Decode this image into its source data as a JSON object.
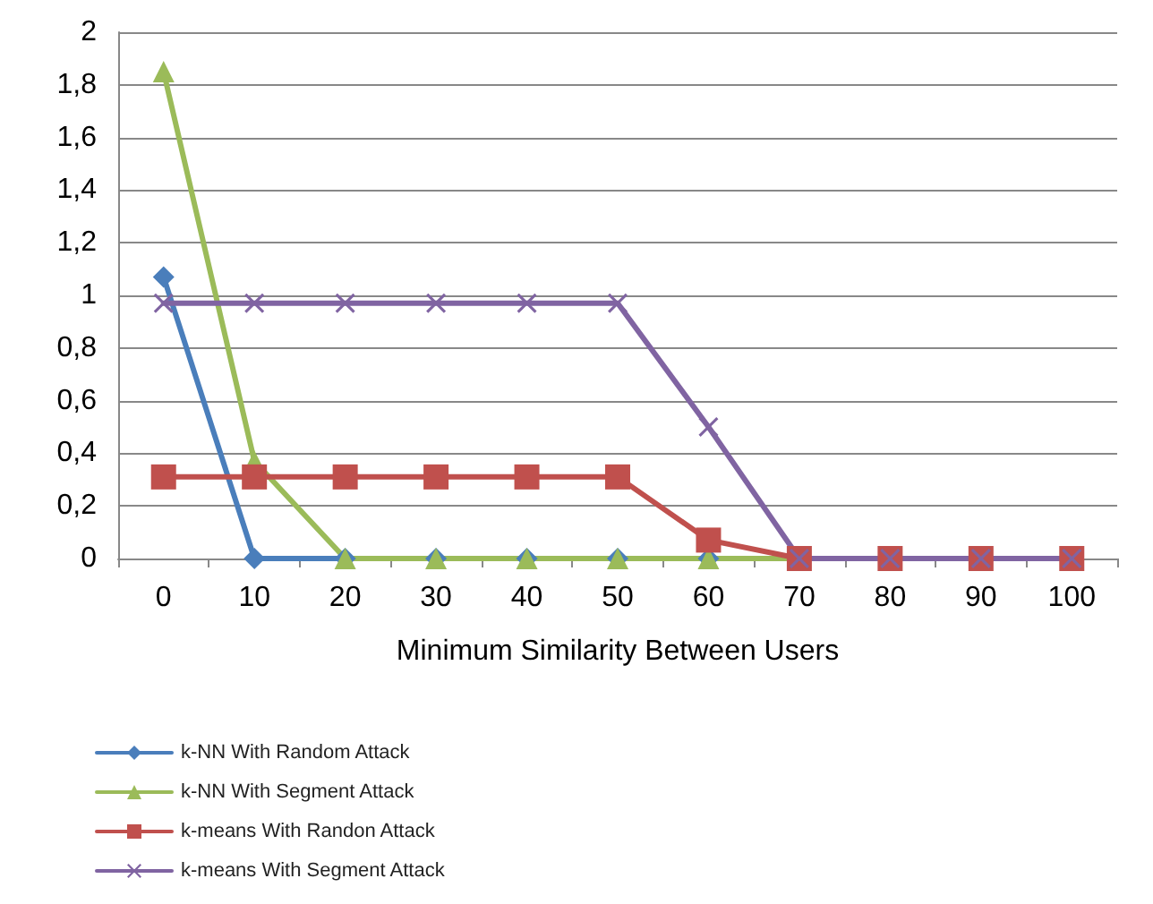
{
  "chart_data": {
    "type": "line",
    "xlabel": "Minimum Similarity Between Users",
    "categories": [
      "0",
      "10",
      "20",
      "30",
      "40",
      "50",
      "60",
      "70",
      "80",
      "90",
      "100"
    ],
    "series": [
      {
        "name": "k-NN With Random Attack",
        "color": "#4a7ebb",
        "marker": "diamond",
        "values": [
          1.07,
          0,
          0,
          0,
          0,
          0,
          0,
          0,
          null,
          null,
          null
        ]
      },
      {
        "name": "k-NN With Segment Attack",
        "color": "#9bbb59",
        "marker": "triangle",
        "values": [
          1.85,
          0.37,
          0,
          0,
          0,
          0,
          0,
          0,
          null,
          null,
          null
        ]
      },
      {
        "name": "k-means With Randon Attack",
        "color": "#c0504d",
        "marker": "square",
        "values": [
          0.31,
          0.31,
          0.31,
          0.31,
          0.31,
          0.31,
          0.07,
          0,
          0,
          0,
          0
        ]
      },
      {
        "name": "k-means With Segment Attack",
        "color": "#8064a2",
        "marker": "cross",
        "values": [
          0.97,
          0.97,
          0.97,
          0.97,
          0.97,
          0.97,
          0.5,
          0,
          0,
          0,
          0
        ]
      }
    ],
    "ylim": [
      0,
      2
    ],
    "yticks": [
      0,
      {
        "value": 0.2,
        "label": "0,2"
      },
      {
        "value": 0.4,
        "label": "0,4"
      },
      {
        "value": 0.6,
        "label": "0,6"
      },
      {
        "value": 0.8,
        "label": "0,8"
      },
      1,
      {
        "value": 1.2,
        "label": "1,2"
      },
      {
        "value": 1.4,
        "label": "1,4"
      },
      {
        "value": 1.6,
        "label": "1,6"
      },
      {
        "value": 1.8,
        "label": "1,8"
      },
      2
    ],
    "grid": "y",
    "legend": "bottom left"
  }
}
